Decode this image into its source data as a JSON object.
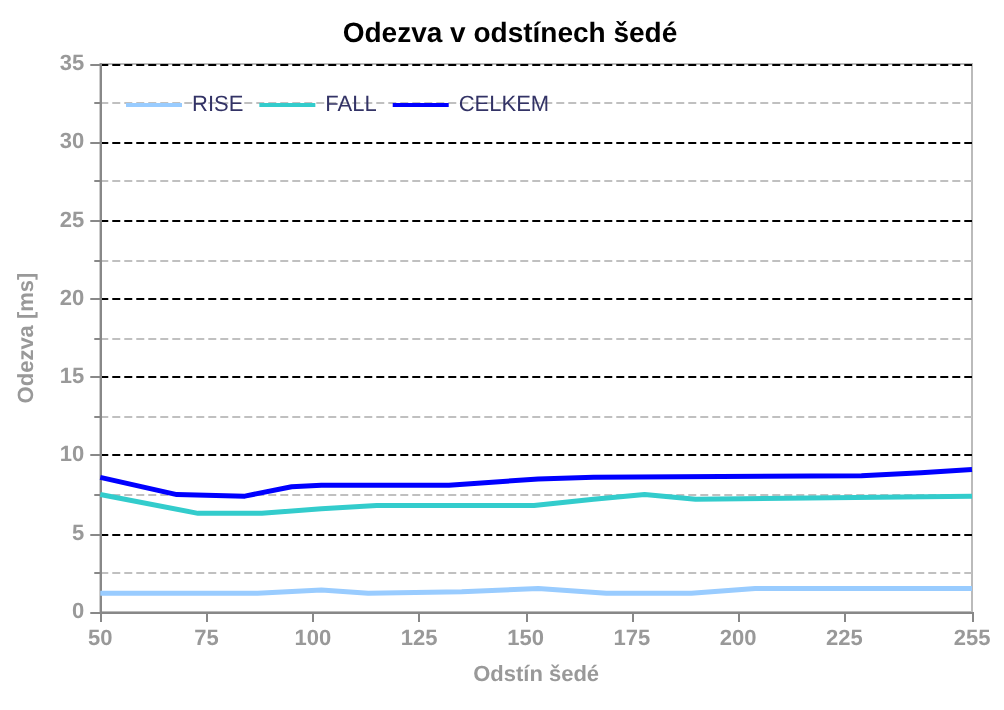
{
  "chart_data": {
    "type": "line",
    "title": "Odezva v odstínech šedé",
    "xlabel": "Odstín šedé",
    "ylabel": "Odezva [ms]",
    "xlim": [
      50,
      255
    ],
    "xticks": [
      50,
      75,
      100,
      125,
      150,
      175,
      200,
      225,
      255
    ],
    "ylim": [
      0,
      35
    ],
    "yticks": [
      0,
      5,
      10,
      15,
      20,
      25,
      30,
      35
    ],
    "grid": "y",
    "legend": "top left",
    "marker": "none",
    "line_style": "solid",
    "series": [
      {
        "name": "RISE",
        "color": "#99ccff",
        "x": [
          50,
          87,
          102,
          113,
          135,
          153,
          169,
          189,
          204,
          255
        ],
        "values": [
          1.2,
          1.2,
          1.4,
          1.2,
          1.3,
          1.5,
          1.2,
          1.2,
          1.5,
          1.5
        ]
      },
      {
        "name": "FALL",
        "color": "#33cccc",
        "x": [
          50,
          73,
          88,
          102,
          115,
          152,
          166,
          178,
          190,
          255
        ],
        "values": [
          7.5,
          6.3,
          6.3,
          6.6,
          6.8,
          6.8,
          7.2,
          7.5,
          7.2,
          7.4
        ]
      },
      {
        "name": "CELKEM",
        "color": "#0000ff",
        "x": [
          50,
          68,
          84,
          95,
          102,
          132,
          153,
          166,
          229,
          243,
          255
        ],
        "values": [
          8.6,
          7.5,
          7.4,
          8.0,
          8.1,
          8.1,
          8.5,
          8.6,
          8.7,
          8.9,
          9.1
        ]
      }
    ]
  }
}
